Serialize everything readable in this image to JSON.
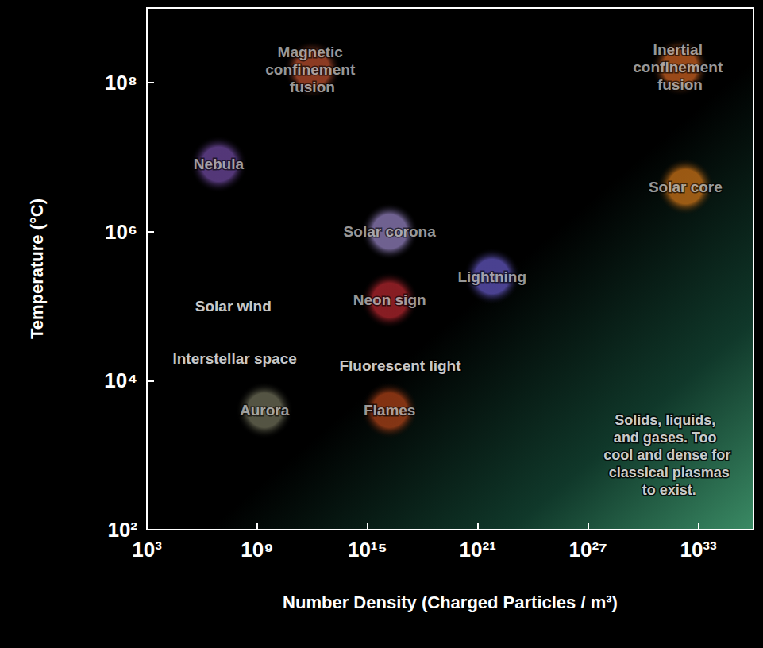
{
  "chart_data": {
    "type": "scatter",
    "log": true,
    "grid": false,
    "x_label": "Number Density (Charged Particles / m³)",
    "y_label": "Temperature (°C)",
    "xlim": [
      1000.0,
      1e+36
    ],
    "xticks": [
      {
        "value": 1000.0,
        "label": "10³"
      },
      {
        "value": 1000000000.0,
        "label": "10⁹"
      },
      {
        "value": 1000000000000000.0,
        "label": "10¹⁵"
      },
      {
        "value": 1e+21,
        "label": "10²¹"
      },
      {
        "value": 1e+27,
        "label": "10²⁷"
      },
      {
        "value": 1e+33,
        "label": "10³³"
      }
    ],
    "ylim": [
      100.0,
      1000000000.0
    ],
    "yticks": [
      {
        "value": 100.0,
        "label": "10²"
      },
      {
        "value": 10000.0,
        "label": "10⁴"
      },
      {
        "value": 1000000.0,
        "label": "10⁶"
      },
      {
        "value": 100000000.0,
        "label": "10⁸"
      }
    ],
    "annotations": [
      {
        "text": "Magnetic confinement fusion",
        "x": 1000000000000.0,
        "y": 150000000.0,
        "color": "#e8623a"
      },
      {
        "text": "Inertial confinement fusion",
        "x": 1e+32,
        "y": 160000000.0,
        "color": "#ff7a2a"
      },
      {
        "text": "Solar core",
        "x": 2e+32,
        "y": 4000000.0,
        "color": "#ff8c1a"
      },
      {
        "text": "Nebula",
        "x": 8000000.0,
        "y": 8000000.0,
        "color": "#8b5cc8"
      },
      {
        "text": "Solar corona",
        "x": 1.6e+16,
        "y": 1000000.0,
        "color": "#b9a2f0"
      },
      {
        "text": "Lightning",
        "x": 6e+21,
        "y": 250000.0,
        "color": "#7b6cf0"
      },
      {
        "text": "Solar wind",
        "x": 50000000.0,
        "y": 100000.0
      },
      {
        "text": "Neon sign",
        "x": 1.6e+16,
        "y": 120000.0,
        "color": "#e0303a"
      },
      {
        "text": "Interstellar space",
        "x": 60000000.0,
        "y": 20000.0
      },
      {
        "text": "Fluorescent light",
        "x": 6e+16,
        "y": 16000.0
      },
      {
        "text": "Aurora",
        "x": 2500000000.0,
        "y": 4000.0,
        "color": "#8c8c70"
      },
      {
        "text": "Flames",
        "x": 1.6e+16,
        "y": 4000.0,
        "color": "#d8501c"
      },
      {
        "text": "Solids, liquids, and gases. Too cool and dense for classical plasmas to exist.",
        "x": 2e+31,
        "y": 1000.0
      }
    ]
  }
}
